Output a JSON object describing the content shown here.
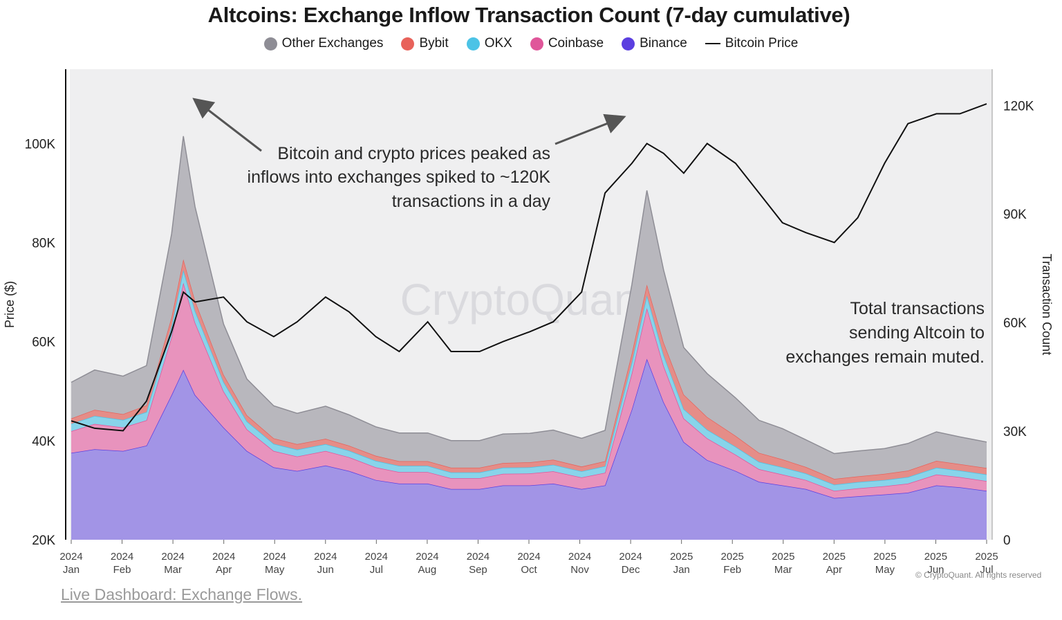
{
  "chart_data": {
    "type": "area",
    "title": "Altcoins: Exchange Inflow Transaction Count (7-day cumulative)",
    "ylabel_left": "Price ($)",
    "ylabel_right": "Transaction Count",
    "ylim_left": [
      20000,
      115000
    ],
    "ylim_right": [
      0,
      130000
    ],
    "left_ticks": [
      "20K",
      "40K",
      "60K",
      "80K",
      "100K"
    ],
    "left_tick_values": [
      20000,
      40000,
      60000,
      80000,
      100000
    ],
    "right_ticks": [
      "0",
      "30K",
      "60K",
      "90K",
      "120K"
    ],
    "right_tick_values": [
      0,
      30000,
      60000,
      90000,
      120000
    ],
    "x_ticks": [
      {
        "year": "2024",
        "month": "Jan"
      },
      {
        "year": "2024",
        "month": "Feb"
      },
      {
        "year": "2024",
        "month": "Mar"
      },
      {
        "year": "2024",
        "month": "Apr"
      },
      {
        "year": "2024",
        "month": "May"
      },
      {
        "year": "2024",
        "month": "Jun"
      },
      {
        "year": "2024",
        "month": "Jul"
      },
      {
        "year": "2024",
        "month": "Aug"
      },
      {
        "year": "2024",
        "month": "Sep"
      },
      {
        "year": "2024",
        "month": "Oct"
      },
      {
        "year": "2024",
        "month": "Nov"
      },
      {
        "year": "2024",
        "month": "Dec"
      },
      {
        "year": "2025",
        "month": "Jan"
      },
      {
        "year": "2025",
        "month": "Feb"
      },
      {
        "year": "2025",
        "month": "Mar"
      },
      {
        "year": "2025",
        "month": "Apr"
      },
      {
        "year": "2025",
        "month": "May"
      },
      {
        "year": "2025",
        "month": "Jun"
      },
      {
        "year": "2025",
        "month": "Jul"
      }
    ],
    "x": [
      "2024-01-01",
      "2024-01-15",
      "2024-02-01",
      "2024-02-15",
      "2024-03-01",
      "2024-03-08",
      "2024-03-15",
      "2024-04-01",
      "2024-04-15",
      "2024-05-01",
      "2024-05-15",
      "2024-06-01",
      "2024-06-15",
      "2024-07-01",
      "2024-07-15",
      "2024-08-01",
      "2024-08-15",
      "2024-09-01",
      "2024-09-15",
      "2024-10-01",
      "2024-10-15",
      "2024-11-01",
      "2024-11-15",
      "2024-12-01",
      "2024-12-10",
      "2024-12-20",
      "2025-01-01",
      "2025-01-15",
      "2025-02-01",
      "2025-02-15",
      "2025-03-01",
      "2025-03-15",
      "2025-04-01",
      "2025-04-15",
      "2025-05-01",
      "2025-05-15",
      "2025-06-01",
      "2025-06-15",
      "2025-07-01"
    ],
    "series": [
      {
        "name": "Binance",
        "color": "#5b3fe0",
        "fill": "#a294e6",
        "values": [
          24000,
          25000,
          24500,
          26000,
          40000,
          47000,
          40000,
          31000,
          24500,
          20000,
          19000,
          20500,
          19000,
          16500,
          15500,
          15500,
          14000,
          14000,
          15000,
          15000,
          15500,
          14000,
          15000,
          36000,
          50000,
          38000,
          27000,
          22000,
          19000,
          16000,
          15000,
          14000,
          11500,
          12000,
          12500,
          13000,
          15000,
          14500,
          13500
        ]
      },
      {
        "name": "Coinbase",
        "color": "#e0569a",
        "fill": "#e893bd",
        "values": [
          6000,
          7000,
          6500,
          7000,
          16000,
          24000,
          20000,
          10000,
          6000,
          4500,
          4000,
          4000,
          3800,
          3500,
          3200,
          3200,
          3000,
          3000,
          3200,
          3300,
          3400,
          3200,
          3500,
          10000,
          14000,
          10000,
          6500,
          6000,
          4500,
          3500,
          3000,
          2500,
          2000,
          2200,
          2300,
          2500,
          3000,
          2800,
          2700
        ]
      },
      {
        "name": "OKX",
        "color": "#4cc3e6",
        "fill": "#88d4ea",
        "values": [
          2000,
          2200,
          2100,
          2300,
          3000,
          3500,
          3200,
          2600,
          2200,
          2000,
          1900,
          1900,
          1800,
          1800,
          1700,
          1700,
          1600,
          1600,
          1700,
          1700,
          1800,
          1700,
          1800,
          3000,
          3500,
          3000,
          2600,
          2400,
          2200,
          2000,
          2000,
          1800,
          1700,
          1700,
          1700,
          1800,
          1900,
          1800,
          1800
        ]
      },
      {
        "name": "Bybit",
        "color": "#e8625a",
        "fill": "#e58d88",
        "values": [
          1500,
          1700,
          1600,
          1800,
          2500,
          3000,
          2800,
          2000,
          1700,
          1500,
          1500,
          1500,
          1400,
          1400,
          1300,
          1300,
          1300,
          1300,
          1300,
          1400,
          1400,
          1300,
          1400,
          2500,
          3000,
          3500,
          4000,
          3500,
          3000,
          2500,
          2200,
          1800,
          1600,
          1600,
          1700,
          1800,
          1900,
          1800,
          1800
        ]
      },
      {
        "name": "Other Exchanges",
        "color": "#8e8d95",
        "fill": "#b8b7bd",
        "values": [
          10000,
          11000,
          10500,
          11000,
          23000,
          34000,
          26000,
          14000,
          10000,
          9000,
          8500,
          9000,
          8500,
          8000,
          7800,
          7800,
          7500,
          7500,
          8000,
          8000,
          8200,
          7800,
          8500,
          19000,
          26000,
          20000,
          13000,
          12000,
          10500,
          9000,
          8500,
          7500,
          7000,
          7000,
          7000,
          7500,
          8000,
          7500,
          7200
        ]
      }
    ],
    "price_series": {
      "name": "Bitcoin Price",
      "color": "#111111",
      "values": [
        44000,
        42500,
        42000,
        48000,
        62000,
        70000,
        68000,
        69000,
        64000,
        61000,
        64000,
        69000,
        66000,
        61000,
        58000,
        64000,
        58000,
        58000,
        60000,
        62000,
        64000,
        70000,
        90000,
        96000,
        100000,
        98000,
        94000,
        100000,
        96000,
        90000,
        84000,
        82000,
        80000,
        85000,
        96000,
        104000,
        106000,
        106000,
        108000
      ]
    },
    "annotations": [
      {
        "text_lines": [
          "Bitcoin and crypto prices peaked as",
          "inflows into exchanges spiked to ~120K",
          "transactions in a day"
        ]
      },
      {
        "text_lines": [
          "Total transactions",
          "sending Altcoin  to",
          "exchanges remain muted."
        ]
      }
    ],
    "watermark": "CryptoQuant",
    "grid": false,
    "legend_position": "top-center"
  },
  "footer": {
    "link_text": "Live Dashboard: Exchange Flows.",
    "credit": "© CryptoQuant. All rights reserved"
  }
}
